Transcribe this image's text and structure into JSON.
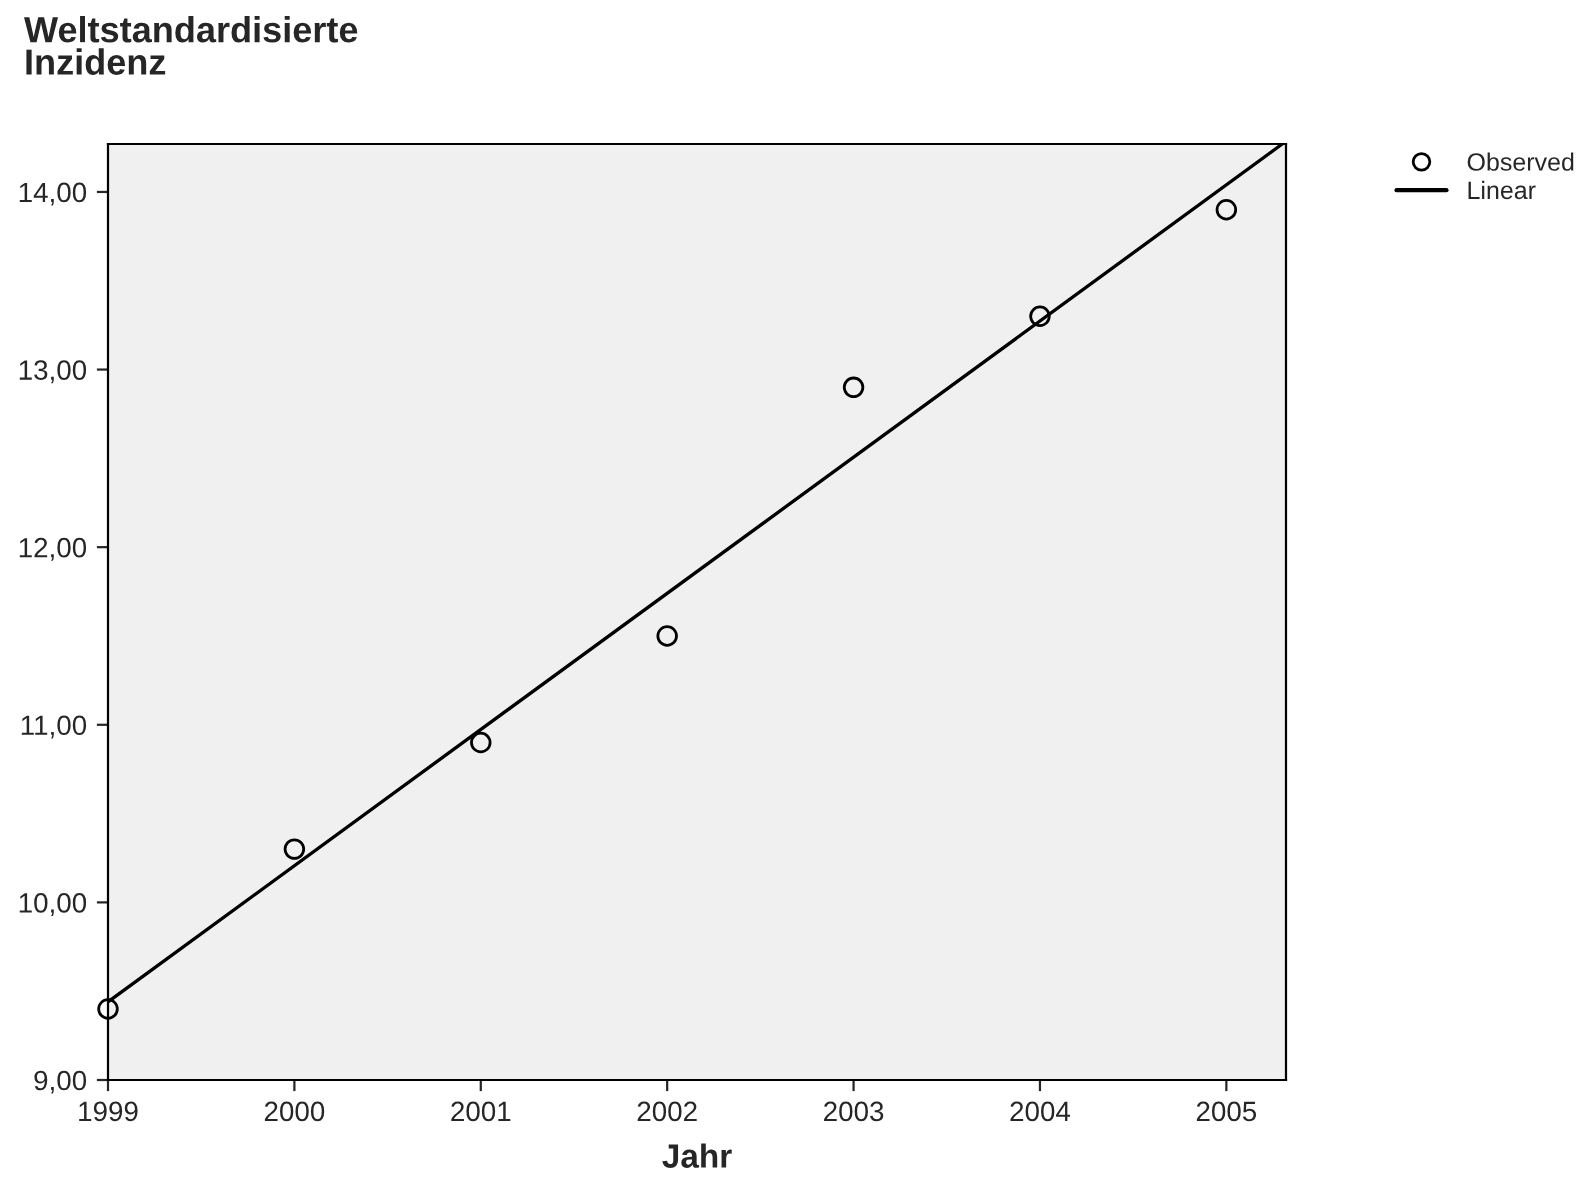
{
  "chart_data": {
    "type": "scatter",
    "ylabel": "Weltstandardisierte\nInzidenz",
    "xlabel": "Jahr",
    "x": [
      1999,
      2000,
      2001,
      2002,
      2003,
      2004,
      2005
    ],
    "series": [
      {
        "name": "Observed",
        "marker": "circle",
        "color": "#000000",
        "values": [
          9.4,
          10.3,
          10.9,
          11.5,
          12.9,
          13.3,
          13.9
        ]
      },
      {
        "name": "Linear",
        "type": "line",
        "marker": "none",
        "line_style": "solid",
        "color": "#000000",
        "x": [
          1999,
          2005.3
        ],
        "values": [
          9.44,
          14.27
        ]
      }
    ],
    "xlim": [
      1999,
      2005.32
    ],
    "xticks": [
      1999,
      2000,
      2001,
      2002,
      2003,
      2004,
      2005
    ],
    "ylim": [
      9,
      14.27
    ],
    "yticks": [
      {
        "value": 9,
        "label": "9,00"
      },
      {
        "value": 10,
        "label": "10,00"
      },
      {
        "value": 11,
        "label": "11,00"
      },
      {
        "value": 12,
        "label": "12,00"
      },
      {
        "value": 13,
        "label": "13,00"
      },
      {
        "value": 14,
        "label": "14,00"
      }
    ],
    "grid": false,
    "legend": "top right"
  }
}
